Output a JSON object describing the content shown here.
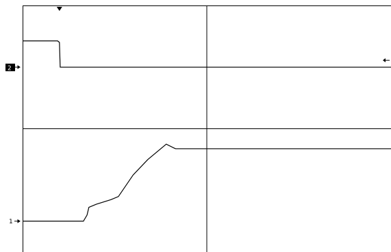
{
  "screen": {
    "background": "#ffffff",
    "trace_color": "#000000",
    "graticule_color": "#000000",
    "grid": true,
    "divisions": {
      "horizontal": 10,
      "vertical": 8,
      "minor_per_division": 5
    },
    "trigger_marker": {
      "division": 1.0,
      "icon": "trigger-position-icon"
    },
    "trigger_level": {
      "icon": "trigger-level-arrow-icon"
    }
  },
  "channels": {
    "ch2": {
      "marker_label": "2",
      "marker_style": "inverted",
      "ground_division_from_top": 2.0,
      "icon": "channel-2-ground-marker-icon"
    },
    "ch1": {
      "marker_label": "1",
      "marker_style": "plain",
      "ground_division_from_top": 7.0,
      "icon": "channel-1-ground-marker-icon"
    }
  },
  "chart_data": [
    {
      "type": "line",
      "title": "",
      "xlabel": "",
      "ylabel": "",
      "xlim": [
        0,
        10
      ],
      "ylim": [
        -2,
        6
      ],
      "grid": true,
      "series": [
        {
          "channel": "2",
          "x": [
            0.0,
            0.95,
            1.0,
            1.02,
            10.0
          ],
          "y": [
            0.85,
            0.85,
            0.8,
            0.0,
            0.0
          ]
        }
      ]
    },
    {
      "type": "line",
      "title": "",
      "xlabel": "",
      "ylabel": "",
      "xlim": [
        0,
        10
      ],
      "ylim": [
        -1,
        7
      ],
      "grid": true,
      "series": [
        {
          "channel": "1",
          "x": [
            0.0,
            1.65,
            1.75,
            1.8,
            2.0,
            2.4,
            2.6,
            3.0,
            3.4,
            3.9,
            4.15,
            10.0
          ],
          "y": [
            0.0,
            0.0,
            0.2,
            0.45,
            0.55,
            0.7,
            0.8,
            1.5,
            2.0,
            2.5,
            2.35,
            2.35
          ]
        }
      ]
    }
  ]
}
